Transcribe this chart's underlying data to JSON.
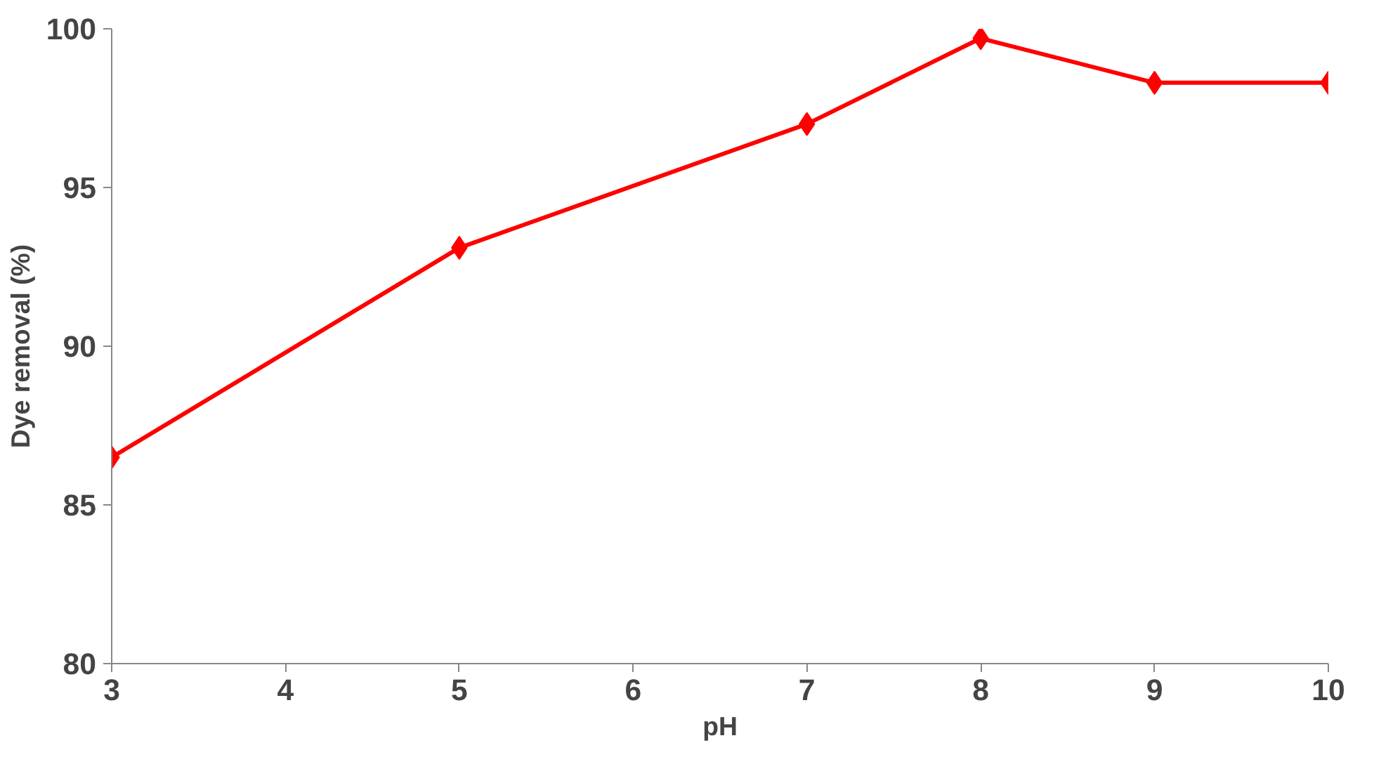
{
  "chart_data": {
    "type": "line",
    "xlabel": "pH",
    "ylabel": "Dye removal (%)",
    "x": [
      3,
      5,
      7,
      8,
      9,
      10
    ],
    "series": [
      {
        "color": "#ff0000",
        "values": [
          86.5,
          93.1,
          97.0,
          99.7,
          98.3,
          98.3
        ]
      }
    ],
    "xlim": [
      3,
      10
    ],
    "xticks": [
      3,
      4,
      5,
      6,
      7,
      8,
      9,
      10
    ],
    "ylim": [
      80,
      100
    ],
    "yticks": [
      80,
      85,
      90,
      95,
      100
    ],
    "marker": "diamond",
    "line_style": "solid"
  }
}
